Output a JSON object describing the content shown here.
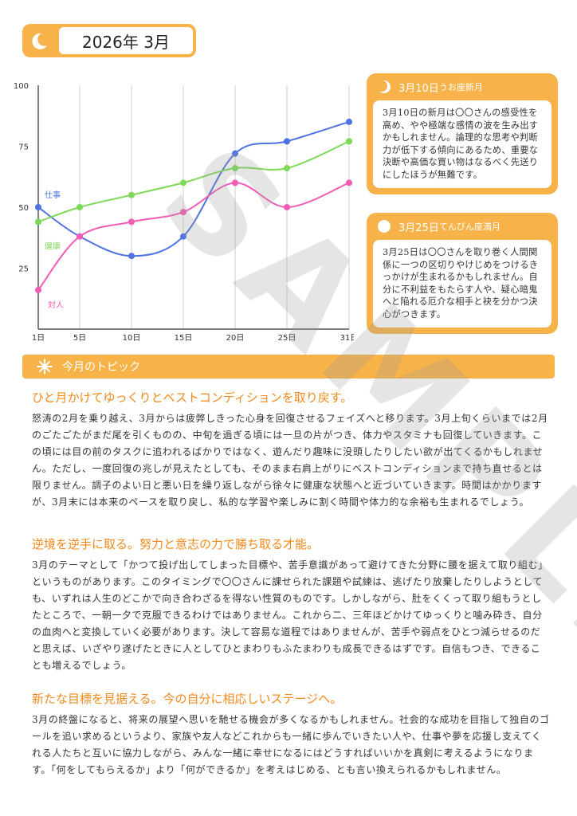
{
  "header": {
    "title": "2026年 3月"
  },
  "chart_data": {
    "type": "line",
    "categories": [
      "1日",
      "5日",
      "10日",
      "15日",
      "20日",
      "25日",
      "31日"
    ],
    "x": [
      1,
      5,
      10,
      15,
      20,
      25,
      31
    ],
    "ylim": [
      0,
      100
    ],
    "yticks": [
      25,
      50,
      75,
      100
    ],
    "series": [
      {
        "name": "仕事",
        "color": "#4f72e3",
        "values": [
          50,
          38,
          30,
          38,
          72,
          77,
          85
        ]
      },
      {
        "name": "健康",
        "color": "#7ed957",
        "values": [
          44,
          50,
          55,
          60,
          66,
          66,
          77
        ]
      },
      {
        "name": "対人",
        "color": "#f25cb5",
        "values": [
          16,
          38,
          44,
          48,
          60,
          50,
          60
        ]
      }
    ],
    "title": "",
    "xlabel": "",
    "ylabel": ""
  },
  "cards": [
    {
      "title": "3月10日",
      "subtitle": "うお座新月",
      "body": "3月10日の新月は〇〇さんの感受性を高め、やや極端な感情の波を生み出すかもしれません。論理的な思考や判断力が低下する傾向にあるため、重要な決断や高価な買い物はなるべく先送りにしたほうが無難です。"
    },
    {
      "title": "3月25日",
      "subtitle": "てんびん座満月",
      "body": "3月25日は〇〇さんを取り巻く人間関係に一つの区切りやけじめをつけるきっかけが生まれるかもしれません。自分に不利益をもたらす人や、疑心暗鬼へと陥れる厄介な相手と袂を分かつ決心がつきます。"
    }
  ],
  "topic": {
    "label": "今月のトピック"
  },
  "sections": [
    {
      "heading": "ひと月かけてゆっくりとベストコンディションを取り戻す。",
      "body": "怒涛の2月を乗り越え、3月からは疲弊しきった心身を回復させるフェイズへと移ります。3月上旬くらいまでは2月のごたごたがまだ尾を引くものの、中旬を過ぎる頃には一旦の片がつき、体力やスタミナも回復していきます。この頃には目の前のタスクに追われるばかりではなく、遊んだり趣味に没頭したりしたい欲が出てくるかもしれません。ただし、一度回復の兆しが見えたとしても、そのまま右肩上がりにベストコンディションまで持ち直せるとは限りません。調子のよい日と悪い日を繰り返しながら徐々に健康な状態へと近づいていきます。時間はかかりますが、3月末には本来のペースを取り戻し、私的な学習や楽しみに割く時間や体力的な余裕も生まれるでしょう。"
    },
    {
      "heading": "逆境を逆手に取る。努力と意志の力で勝ち取る才能。",
      "body": "3月のテーマとして「かつて投げ出してしまった目標や、苦手意識があって避けてきた分野に腰を据えて取り組む」というものがあります。このタイミングで〇〇さんに課せられた課題や試練は、逃げたり放棄したりしようとしても、いずれは人生のどこかで向き合わざるを得ない性質のものです。しかしながら、肚をくくって取り組もうとしたところで、一朝一夕で克服できるわけではありません。これから二、三年ほどかけてゆっくりと噛み砕き、自分の血肉へと変換していく必要があります。決して容易な道程ではありませんが、苦手や弱点をひとつ減らせるのだと思えば、いざやり遂げたときに人としてひとまわりもふたまわりも成長できるはずです。自信もつき、できることも増えるでしょう。"
    },
    {
      "heading": "新たな目標を見据える。今の自分に相応しいステージへ。",
      "body": "3月の終盤になると、将来の展望へ思いを馳せる機会が多くなるかもしれません。社会的な成功を目指して独自のゴールを追い求めるというより、家族や友人などこれからも一緒に歩んでいきたい人や、仕事や夢を応援し支えてくれる人たちと互いに協力しながら、みんな一緒に幸せになるにはどうすればいいかを真剣に考えるようになります。「何をしてもらえるか」より「何ができるか」を考えはじめる、とも言い換えられるかもしれません。"
    }
  ],
  "watermark": "SAMPLE"
}
